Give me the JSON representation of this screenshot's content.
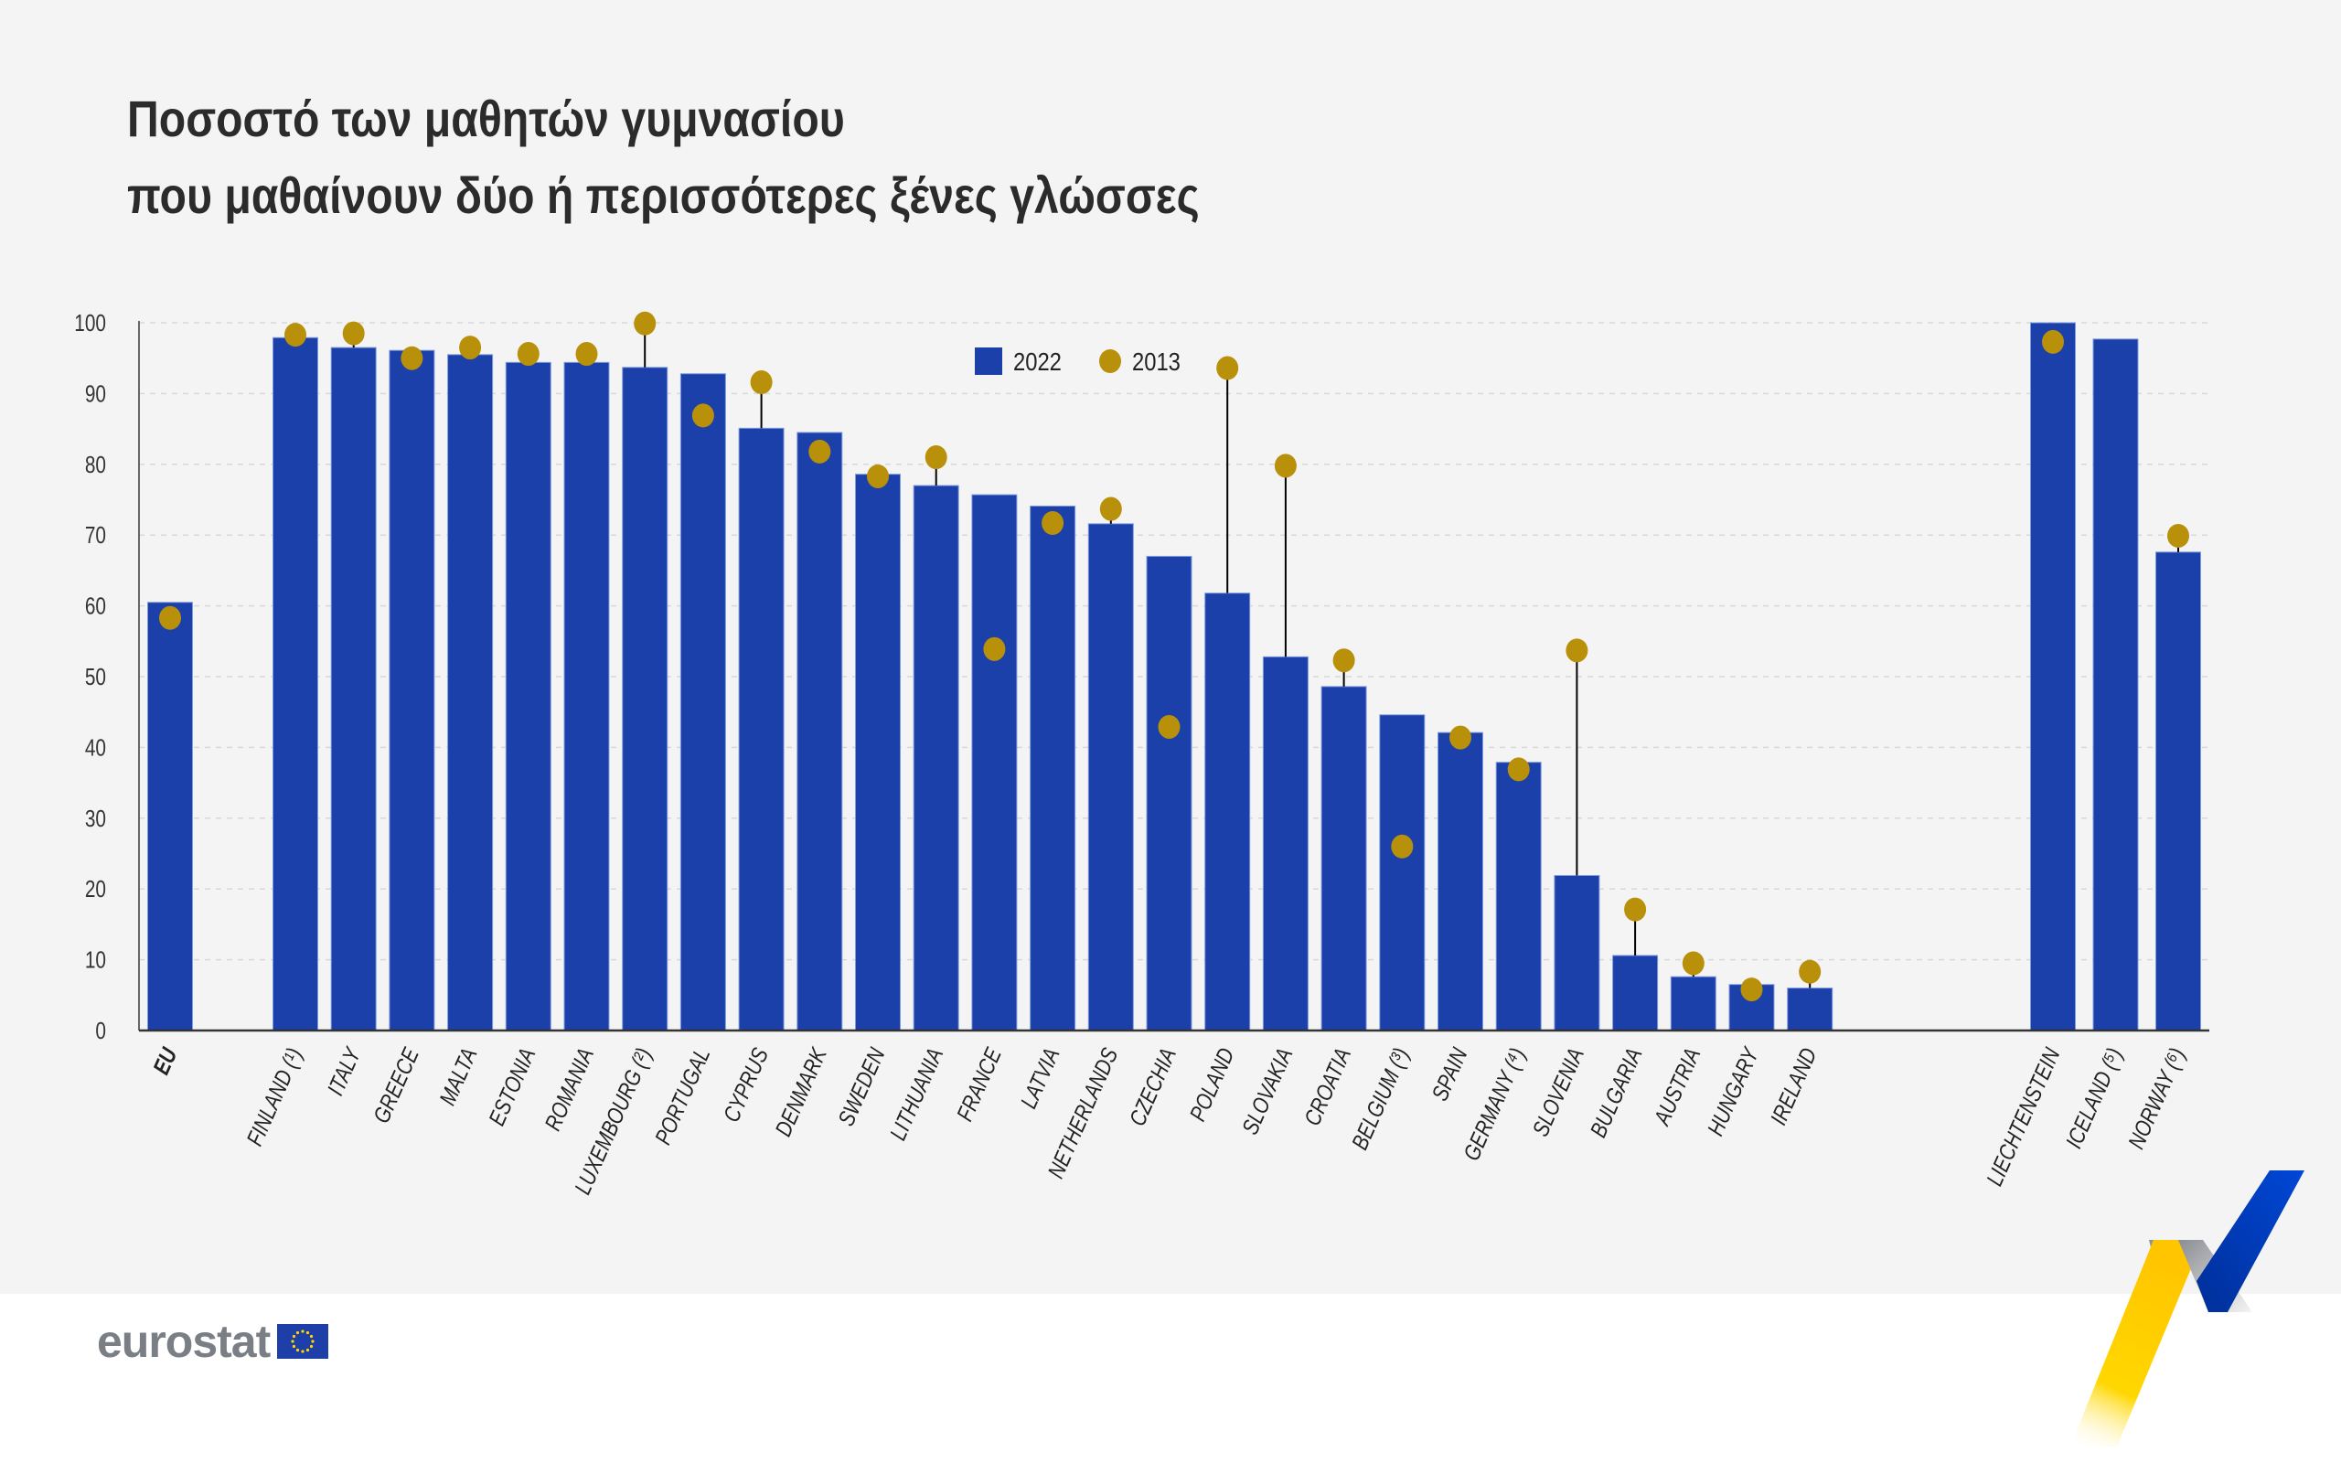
{
  "title": {
    "line1": "Ποσοστό των μαθητών γυμνασίου",
    "line2": "που μαθαίνουν δύο ή περισσότερες ξένες γλώσσες"
  },
  "logo": {
    "text": "eurostat"
  },
  "colors": {
    "bar_2022": "#1c40aa",
    "dot_2013": "#b8900a",
    "connector": "#000000",
    "grid": "#d8d8d8"
  },
  "chart_data": {
    "type": "bar",
    "title": "",
    "xlabel": "",
    "ylabel": "",
    "ylim": [
      0,
      100
    ],
    "yticks": [
      0,
      10,
      20,
      30,
      40,
      50,
      60,
      70,
      80,
      90,
      100
    ],
    "grid": true,
    "legend_position": "top-center",
    "categories": [
      "EU",
      "FINLAND (¹)",
      "ITALY",
      "GREECE",
      "MALTA",
      "ESTONIA",
      "ROMANIA",
      "LUXEMBOURG (²)",
      "PORTUGAL",
      "CYPRUS",
      "DENMARK",
      "SWEDEN",
      "LITHUANIA",
      "FRANCE",
      "LATVIA",
      "NETHERLANDS",
      "CZECHIA",
      "POLAND",
      "SLOVAKIA",
      "CROATIA",
      "BELGIUM (³)",
      "SPAIN",
      "GERMANY (⁴)",
      "SLOVENIA",
      "BULGARIA",
      "AUSTRIA",
      "HUNGARY",
      "IRELAND",
      "LIECHTENSTEIN",
      "ICELAND (⁵)",
      "NORWAY (⁶)"
    ],
    "series": [
      {
        "name": "2022",
        "kind": "bar",
        "values": [
          60.5,
          97.9,
          96.5,
          96.1,
          95.5,
          94.4,
          94.4,
          93.7,
          92.8,
          85.1,
          84.5,
          78.6,
          77.0,
          75.7,
          74.1,
          71.6,
          67.0,
          61.8,
          52.8,
          48.6,
          44.6,
          42.1,
          37.9,
          21.9,
          10.6,
          7.6,
          6.5,
          6.0,
          100.0,
          97.7,
          67.6
        ]
      },
      {
        "name": "2013",
        "kind": "dot",
        "values": [
          58.3,
          98.3,
          98.5,
          95.0,
          96.5,
          95.6,
          95.6,
          99.9,
          86.9,
          91.6,
          81.8,
          78.3,
          81.0,
          53.9,
          71.7,
          73.7,
          42.9,
          93.6,
          79.8,
          52.3,
          26.0,
          41.4,
          36.9,
          53.7,
          17.1,
          9.5,
          5.8,
          8.3,
          97.3,
          null,
          69.9
        ]
      }
    ]
  }
}
